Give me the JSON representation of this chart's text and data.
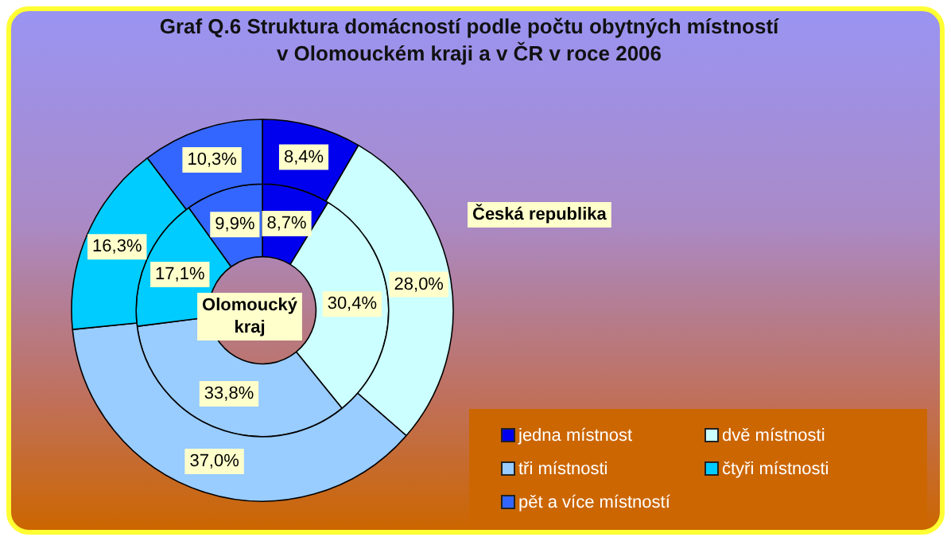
{
  "chart_data": {
    "type": "donut",
    "title": "Graf Q.6 Struktura domácností podle počtu obytných místností\nv Olomouckém kraji a v ČR v roce 2006",
    "categories": [
      "jedna místnost",
      "dvě místnosti",
      "tři místnosti",
      "čtyři místnosti",
      "pět a více místností"
    ],
    "colors": [
      "#0000ee",
      "#ccffff",
      "#99ccff",
      "#00ccff",
      "#3366ff"
    ],
    "series": [
      {
        "name": "Česká republika",
        "values": [
          8.4,
          28.0,
          37.0,
          16.3,
          10.3
        ],
        "value_labels": [
          "8,4%",
          "28,0%",
          "37,0%",
          "16,3%",
          "10,3%"
        ]
      },
      {
        "name": "Olomoucký kraj",
        "values": [
          8.7,
          30.4,
          33.8,
          17.1,
          9.9
        ],
        "value_labels": [
          "8,7%",
          "30,4%",
          "33,8%",
          "17,1%",
          "9,9%"
        ]
      }
    ],
    "legend": "bottom right"
  }
}
